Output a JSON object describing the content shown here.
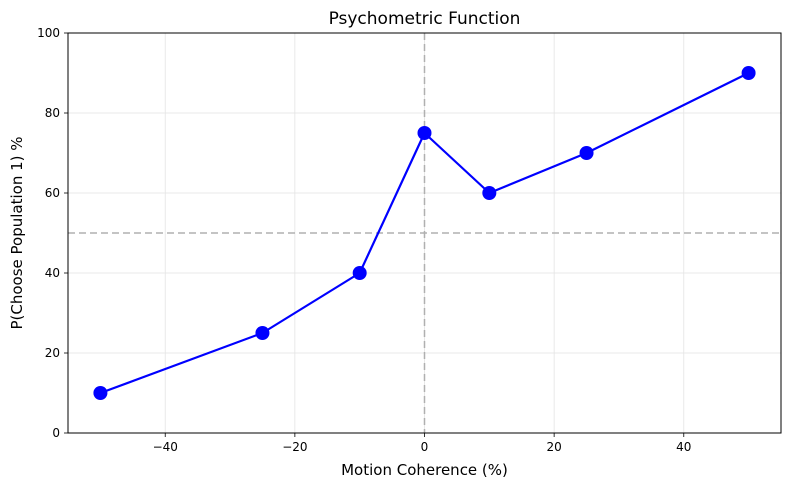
{
  "chart_data": {
    "type": "line",
    "title": "Psychometric Function",
    "xlabel": "Motion Coherence (%)",
    "ylabel": "P(Choose Population 1) %",
    "xlim": [
      -55,
      55
    ],
    "ylim": [
      0,
      100
    ],
    "xticks": [
      -40,
      -20,
      0,
      20,
      40
    ],
    "yticks": [
      0,
      20,
      40,
      60,
      80,
      100
    ],
    "grid": true,
    "reference_lines": {
      "x": 0,
      "y": 50
    },
    "series": [
      {
        "x": [
          -50,
          -25,
          -10,
          0,
          10,
          25,
          50
        ],
        "y": [
          10,
          25,
          40,
          75,
          60,
          70,
          90
        ],
        "color": "#0000ff",
        "marker": "circle"
      }
    ]
  }
}
